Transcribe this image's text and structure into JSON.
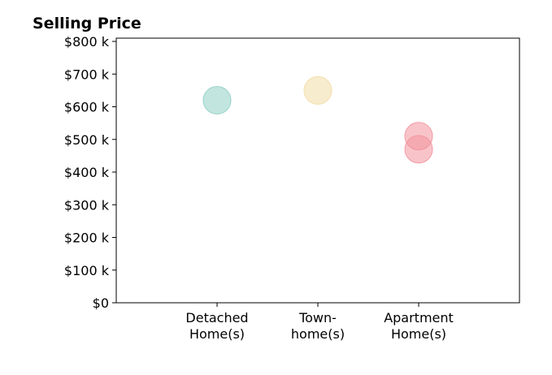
{
  "chart_data": {
    "type": "scatter",
    "title": "Selling Price",
    "xlabel": "",
    "ylabel": "",
    "categories": [
      {
        "lines": [
          "Detached",
          "Home(s)"
        ]
      },
      {
        "lines": [
          "Town-",
          "home(s)"
        ]
      },
      {
        "lines": [
          "Apartment",
          "Home(s)"
        ]
      }
    ],
    "points": [
      {
        "category": 0,
        "value": 620000,
        "color": "#8fcfc4"
      },
      {
        "category": 1,
        "value": 650000,
        "color": "#f3dca6"
      },
      {
        "category": 2,
        "value": 510000,
        "color": "#f2939d"
      },
      {
        "category": 2,
        "value": 470000,
        "color": "#f2939d"
      }
    ],
    "ylim": [
      0,
      810000
    ],
    "xlim": [
      -1,
      3
    ],
    "yticks": [
      {
        "value": 0,
        "label": "$0"
      },
      {
        "value": 100000,
        "label": "$100 k"
      },
      {
        "value": 200000,
        "label": "$200 k"
      },
      {
        "value": 300000,
        "label": "$300 k"
      },
      {
        "value": 400000,
        "label": "$400 k"
      },
      {
        "value": 500000,
        "label": "$500 k"
      },
      {
        "value": 600000,
        "label": "$600 k"
      },
      {
        "value": 700000,
        "label": "$700 k"
      },
      {
        "value": 800000,
        "label": "$800 k"
      }
    ],
    "grid": false,
    "legend": "none"
  }
}
